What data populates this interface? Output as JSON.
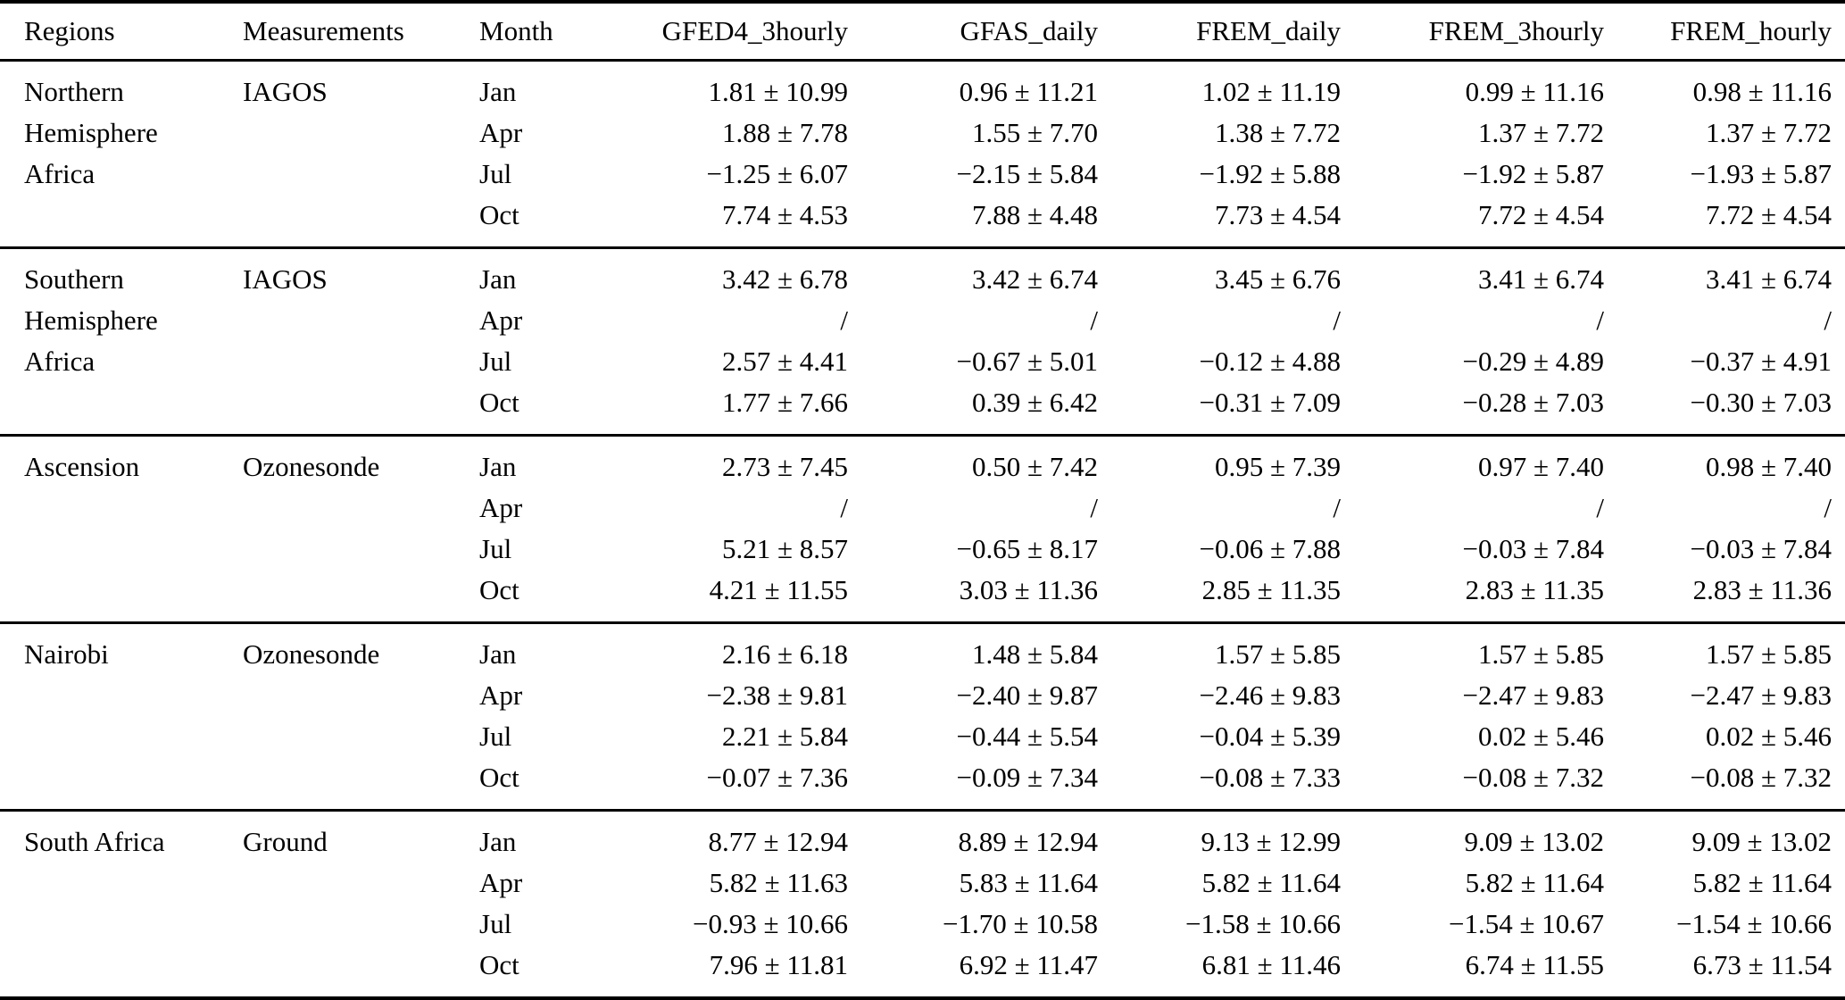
{
  "colors": {
    "text": "#000000",
    "background": "#ffffff",
    "rule": "#000000"
  },
  "table": {
    "columns": [
      "Regions",
      "Measurements",
      "Month",
      "GFED4_3hourly",
      "GFAS_daily",
      "FREM_daily",
      "FREM_3hourly",
      "FREM_hourly"
    ],
    "missing_marker": "/",
    "groups": [
      {
        "region": "Northern Hemisphere Africa",
        "measurement": "IAGOS",
        "rows": [
          {
            "month": "Jan",
            "values": [
              "1.81 ± 10.99",
              "0.96 ± 11.21",
              "1.02 ± 11.19",
              "0.99 ± 11.16",
              "0.98 ± 11.16"
            ]
          },
          {
            "month": "Apr",
            "values": [
              "1.88 ± 7.78",
              "1.55 ± 7.70",
              "1.38 ± 7.72",
              "1.37 ± 7.72",
              "1.37 ± 7.72"
            ]
          },
          {
            "month": "Jul",
            "values": [
              "−1.25 ± 6.07",
              "−2.15 ± 5.84",
              "−1.92 ± 5.88",
              "−1.92 ± 5.87",
              "−1.93 ± 5.87"
            ]
          },
          {
            "month": "Oct",
            "values": [
              "7.74 ± 4.53",
              "7.88 ± 4.48",
              "7.73 ± 4.54",
              "7.72 ± 4.54",
              "7.72 ± 4.54"
            ]
          }
        ]
      },
      {
        "region": "Southern Hemisphere Africa",
        "measurement": "IAGOS",
        "rows": [
          {
            "month": "Jan",
            "values": [
              "3.42 ± 6.78",
              "3.42 ± 6.74",
              "3.45 ± 6.76",
              "3.41 ± 6.74",
              "3.41 ± 6.74"
            ]
          },
          {
            "month": "Apr",
            "values": [
              "/",
              "/",
              "/",
              "/",
              "/"
            ]
          },
          {
            "month": "Jul",
            "values": [
              "2.57 ± 4.41",
              "−0.67 ± 5.01",
              "−0.12 ± 4.88",
              "−0.29 ± 4.89",
              "−0.37 ± 4.91"
            ]
          },
          {
            "month": "Oct",
            "values": [
              "1.77 ± 7.66",
              "0.39 ± 6.42",
              "−0.31 ± 7.09",
              "−0.28 ± 7.03",
              "−0.30 ± 7.03"
            ]
          }
        ]
      },
      {
        "region": "Ascension",
        "measurement": "Ozonesonde",
        "rows": [
          {
            "month": "Jan",
            "values": [
              "2.73 ± 7.45",
              "0.50 ± 7.42",
              "0.95 ± 7.39",
              "0.97 ± 7.40",
              "0.98 ± 7.40"
            ]
          },
          {
            "month": "Apr",
            "values": [
              "/",
              "/",
              "/",
              "/",
              "/"
            ]
          },
          {
            "month": "Jul",
            "values": [
              "5.21 ± 8.57",
              "−0.65 ± 8.17",
              "−0.06 ± 7.88",
              "−0.03 ± 7.84",
              "−0.03 ± 7.84"
            ]
          },
          {
            "month": "Oct",
            "values": [
              "4.21 ± 11.55",
              "3.03 ± 11.36",
              "2.85 ± 11.35",
              "2.83 ± 11.35",
              "2.83 ± 11.36"
            ]
          }
        ]
      },
      {
        "region": "Nairobi",
        "measurement": "Ozonesonde",
        "rows": [
          {
            "month": "Jan",
            "values": [
              "2.16 ± 6.18",
              "1.48 ± 5.84",
              "1.57 ± 5.85",
              "1.57 ± 5.85",
              "1.57 ± 5.85"
            ]
          },
          {
            "month": "Apr",
            "values": [
              "−2.38 ± 9.81",
              "−2.40 ± 9.87",
              "−2.46 ± 9.83",
              "−2.47 ± 9.83",
              "−2.47 ± 9.83"
            ]
          },
          {
            "month": "Jul",
            "values": [
              "2.21 ± 5.84",
              "−0.44 ± 5.54",
              "−0.04 ± 5.39",
              "0.02 ± 5.46",
              "0.02 ± 5.46"
            ]
          },
          {
            "month": "Oct",
            "values": [
              "−0.07 ± 7.36",
              "−0.09 ± 7.34",
              "−0.08 ± 7.33",
              "−0.08 ± 7.32",
              "−0.08 ± 7.32"
            ]
          }
        ]
      },
      {
        "region": "South Africa",
        "measurement": "Ground",
        "rows": [
          {
            "month": "Jan",
            "values": [
              "8.77 ± 12.94",
              "8.89 ± 12.94",
              "9.13 ± 12.99",
              "9.09 ± 13.02",
              "9.09 ± 13.02"
            ]
          },
          {
            "month": "Apr",
            "values": [
              "5.82 ± 11.63",
              "5.83 ± 11.64",
              "5.82 ± 11.64",
              "5.82 ± 11.64",
              "5.82 ± 11.64"
            ]
          },
          {
            "month": "Jul",
            "values": [
              "−0.93 ± 10.66",
              "−1.70 ± 10.58",
              "−1.58 ± 10.66",
              "−1.54 ± 10.67",
              "−1.54 ± 10.66"
            ]
          },
          {
            "month": "Oct",
            "values": [
              "7.96 ± 11.81",
              "6.92 ± 11.47",
              "6.81 ± 11.46",
              "6.74 ± 11.55",
              "6.73 ± 11.54"
            ]
          }
        ]
      }
    ]
  }
}
